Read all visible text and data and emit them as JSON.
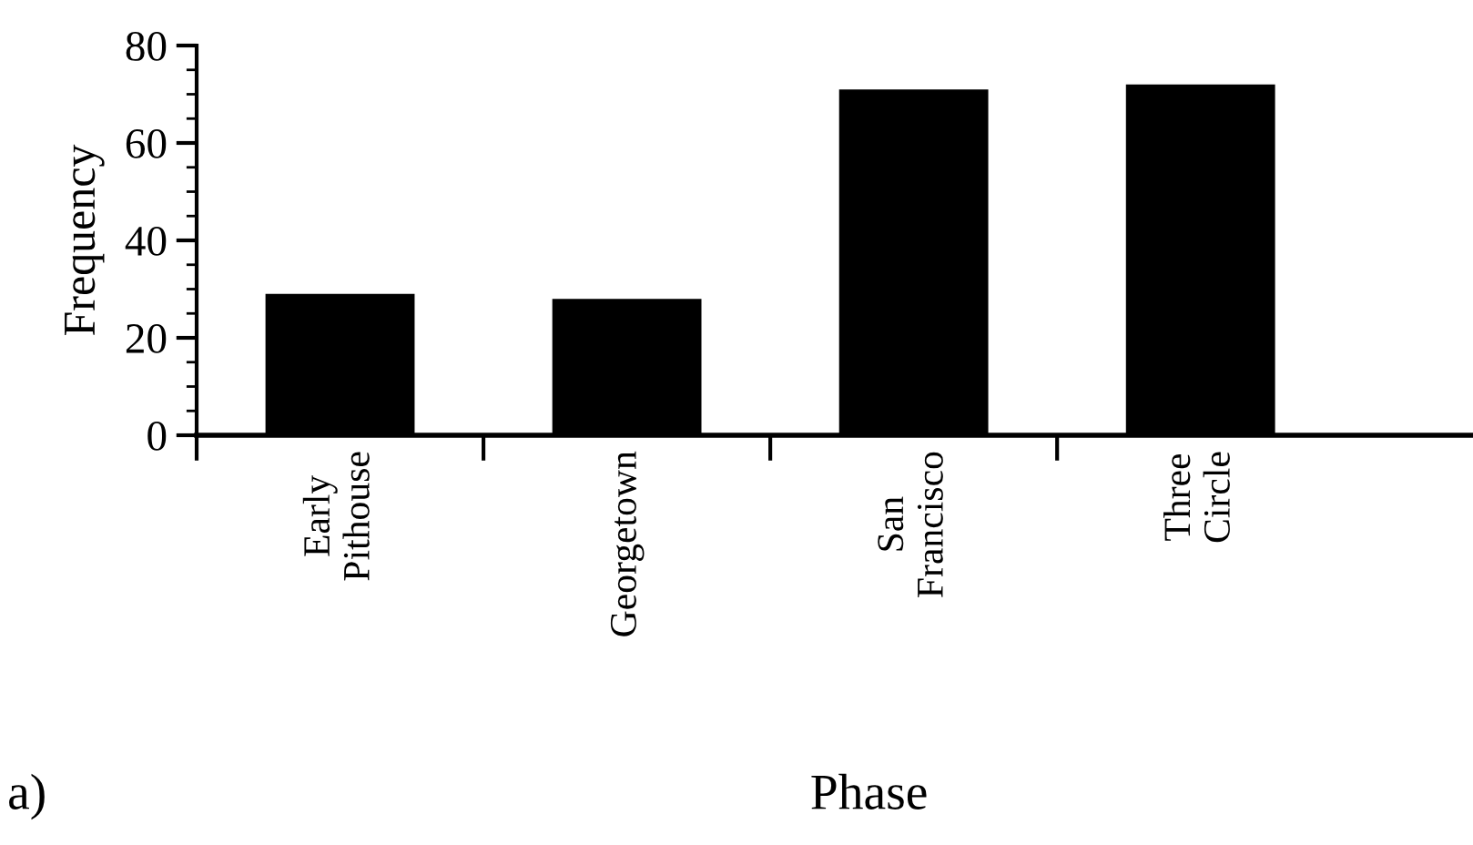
{
  "chart_data": {
    "type": "bar",
    "xlabel": "Phase",
    "ylabel": "Frequency",
    "categories": [
      "Early\nPithouse",
      "Georgetown",
      "San\nFrancisco",
      "Three\nCircle"
    ],
    "values": [
      29,
      28,
      71,
      72
    ],
    "color": "#000000",
    "ylim": [
      0,
      80
    ],
    "yticks": [
      0,
      {
        "value": 5,
        "label": null
      },
      {
        "value": 10,
        "label": null
      },
      {
        "value": 15,
        "label": null
      },
      20,
      {
        "value": 25,
        "label": null
      },
      {
        "value": 30,
        "label": null
      },
      {
        "value": 35,
        "label": null
      },
      40,
      {
        "value": 45,
        "label": null
      },
      {
        "value": 50,
        "label": null
      },
      {
        "value": 55,
        "label": null
      },
      60,
      {
        "value": 65,
        "label": null
      },
      {
        "value": 70,
        "label": null
      },
      {
        "value": 75,
        "label": null
      },
      80
    ],
    "annotations": [
      "a)"
    ],
    "grid": false,
    "legend": false
  }
}
